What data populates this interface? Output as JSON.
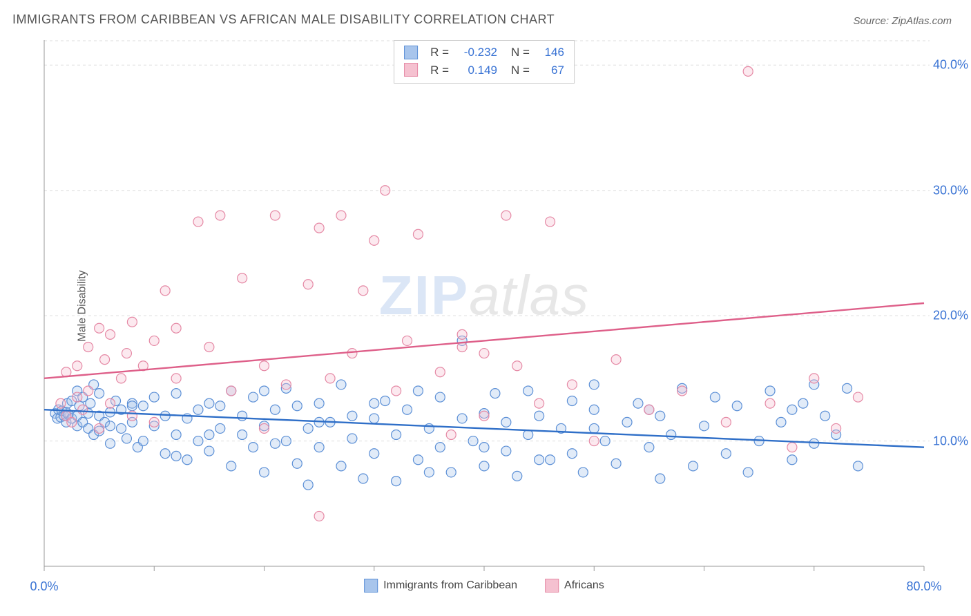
{
  "title": "IMMIGRANTS FROM CARIBBEAN VS AFRICAN MALE DISABILITY CORRELATION CHART",
  "source": "Source: ZipAtlas.com",
  "ylabel": "Male Disability",
  "chart": {
    "type": "scatter",
    "xlim": [
      0,
      80
    ],
    "ylim": [
      0,
      42
    ],
    "xticks": [
      0,
      80
    ],
    "xtick_labels": [
      "0.0%",
      "80.0%"
    ],
    "yticks": [
      10,
      20,
      30,
      40
    ],
    "ytick_labels": [
      "10.0%",
      "20.0%",
      "30.0%",
      "40.0%"
    ],
    "minor_x_count": 8,
    "grid_color": "#dddddd",
    "axis_color": "#999999",
    "background_color": "#ffffff",
    "marker_radius": 7,
    "marker_stroke_width": 1.2,
    "marker_fill_opacity": 0.35,
    "line_width": 2.4,
    "series": [
      {
        "name": "Immigrants from Caribbean",
        "color_stroke": "#5b8fd6",
        "color_fill": "#a8c5ec",
        "line_color": "#2f6fc8",
        "R": "-0.232",
        "N": "146",
        "trend": {
          "x1": 0,
          "y1": 12.5,
          "x2": 80,
          "y2": 9.5
        },
        "points": [
          [
            1,
            12.2
          ],
          [
            1.2,
            11.8
          ],
          [
            1.3,
            12.5
          ],
          [
            1.5,
            11.9
          ],
          [
            1.6,
            12.4
          ],
          [
            1.8,
            12.0
          ],
          [
            2,
            12.3
          ],
          [
            2,
            11.5
          ],
          [
            2.1,
            13.0
          ],
          [
            2.2,
            12.1
          ],
          [
            2.5,
            11.8
          ],
          [
            2.5,
            13.2
          ],
          [
            3,
            12.0
          ],
          [
            3,
            11.2
          ],
          [
            3,
            14.0
          ],
          [
            3.2,
            12.8
          ],
          [
            3.5,
            11.5
          ],
          [
            3.5,
            13.5
          ],
          [
            4,
            12.2
          ],
          [
            4,
            11.0
          ],
          [
            4.2,
            13.0
          ],
          [
            4.5,
            10.5
          ],
          [
            4.5,
            14.5
          ],
          [
            5,
            12.0
          ],
          [
            5,
            10.8
          ],
          [
            5,
            13.8
          ],
          [
            5.5,
            11.5
          ],
          [
            6,
            12.3
          ],
          [
            6,
            9.8
          ],
          [
            6.5,
            13.2
          ],
          [
            7,
            11.0
          ],
          [
            7,
            12.5
          ],
          [
            7.5,
            10.2
          ],
          [
            8,
            13.0
          ],
          [
            8,
            11.5
          ],
          [
            8.5,
            9.5
          ],
          [
            9,
            12.8
          ],
          [
            9,
            10.0
          ],
          [
            10,
            11.2
          ],
          [
            10,
            13.5
          ],
          [
            11,
            9.0
          ],
          [
            11,
            12.0
          ],
          [
            12,
            10.5
          ],
          [
            12,
            13.8
          ],
          [
            13,
            11.8
          ],
          [
            13,
            8.5
          ],
          [
            14,
            12.5
          ],
          [
            14,
            10.0
          ],
          [
            15,
            9.2
          ],
          [
            15,
            13.0
          ],
          [
            16,
            11.0
          ],
          [
            16,
            12.8
          ],
          [
            17,
            8.0
          ],
          [
            17,
            14.0
          ],
          [
            18,
            10.5
          ],
          [
            18,
            12.0
          ],
          [
            19,
            9.5
          ],
          [
            19,
            13.5
          ],
          [
            20,
            11.2
          ],
          [
            20,
            7.5
          ],
          [
            21,
            12.5
          ],
          [
            21,
            9.8
          ],
          [
            22,
            14.2
          ],
          [
            22,
            10.0
          ],
          [
            23,
            8.2
          ],
          [
            23,
            12.8
          ],
          [
            24,
            11.0
          ],
          [
            24,
            6.5
          ],
          [
            25,
            13.0
          ],
          [
            25,
            9.5
          ],
          [
            26,
            11.5
          ],
          [
            27,
            8.0
          ],
          [
            27,
            14.5
          ],
          [
            28,
            10.2
          ],
          [
            28,
            12.0
          ],
          [
            29,
            7.0
          ],
          [
            30,
            11.8
          ],
          [
            30,
            9.0
          ],
          [
            31,
            13.2
          ],
          [
            32,
            10.5
          ],
          [
            32,
            6.8
          ],
          [
            33,
            12.5
          ],
          [
            34,
            8.5
          ],
          [
            34,
            14.0
          ],
          [
            35,
            11.0
          ],
          [
            36,
            9.5
          ],
          [
            36,
            13.5
          ],
          [
            37,
            7.5
          ],
          [
            38,
            11.8
          ],
          [
            38,
            18.0
          ],
          [
            39,
            10.0
          ],
          [
            40,
            12.2
          ],
          [
            40,
            8.0
          ],
          [
            41,
            13.8
          ],
          [
            42,
            9.2
          ],
          [
            42,
            11.5
          ],
          [
            43,
            7.2
          ],
          [
            44,
            14.0
          ],
          [
            44,
            10.5
          ],
          [
            45,
            12.0
          ],
          [
            46,
            8.5
          ],
          [
            47,
            11.0
          ],
          [
            48,
            13.2
          ],
          [
            48,
            9.0
          ],
          [
            49,
            7.5
          ],
          [
            50,
            12.5
          ],
          [
            50,
            14.5
          ],
          [
            51,
            10.0
          ],
          [
            52,
            8.2
          ],
          [
            53,
            11.5
          ],
          [
            54,
            13.0
          ],
          [
            55,
            9.5
          ],
          [
            56,
            7.0
          ],
          [
            56,
            12.0
          ],
          [
            57,
            10.5
          ],
          [
            58,
            14.2
          ],
          [
            59,
            8.0
          ],
          [
            60,
            11.2
          ],
          [
            61,
            13.5
          ],
          [
            62,
            9.0
          ],
          [
            63,
            12.8
          ],
          [
            64,
            7.5
          ],
          [
            65,
            10.0
          ],
          [
            66,
            14.0
          ],
          [
            67,
            11.5
          ],
          [
            68,
            8.5
          ],
          [
            69,
            13.0
          ],
          [
            70,
            9.8
          ],
          [
            70,
            14.5
          ],
          [
            71,
            12.0
          ],
          [
            72,
            10.5
          ],
          [
            73,
            14.2
          ],
          [
            74,
            8.0
          ],
          [
            68,
            12.5
          ],
          [
            55,
            12.5
          ],
          [
            50,
            11.0
          ],
          [
            45,
            8.5
          ],
          [
            40,
            9.5
          ],
          [
            35,
            7.5
          ],
          [
            30,
            13.0
          ],
          [
            25,
            11.5
          ],
          [
            20,
            14.0
          ],
          [
            15,
            10.5
          ],
          [
            12,
            8.8
          ],
          [
            8,
            12.8
          ],
          [
            6,
            11.2
          ]
        ]
      },
      {
        "name": "Africans",
        "color_stroke": "#e589a5",
        "color_fill": "#f5c1d0",
        "line_color": "#de5f89",
        "R": "0.149",
        "N": "67",
        "trend": {
          "x1": 0,
          "y1": 15.0,
          "x2": 80,
          "y2": 21.0
        },
        "points": [
          [
            1.5,
            13.0
          ],
          [
            2,
            12.0
          ],
          [
            2,
            15.5
          ],
          [
            2.5,
            11.5
          ],
          [
            3,
            16.0
          ],
          [
            3,
            13.5
          ],
          [
            3.5,
            12.5
          ],
          [
            4,
            17.5
          ],
          [
            4,
            14.0
          ],
          [
            5,
            19.0
          ],
          [
            5,
            11.0
          ],
          [
            5.5,
            16.5
          ],
          [
            6,
            18.5
          ],
          [
            6,
            13.0
          ],
          [
            7,
            15.0
          ],
          [
            7.5,
            17.0
          ],
          [
            8,
            19.5
          ],
          [
            8,
            12.0
          ],
          [
            9,
            16.0
          ],
          [
            10,
            18.0
          ],
          [
            10,
            11.5
          ],
          [
            11,
            22.0
          ],
          [
            12,
            15.0
          ],
          [
            12,
            19.0
          ],
          [
            14,
            27.5
          ],
          [
            15,
            17.5
          ],
          [
            16,
            28.0
          ],
          [
            17,
            14.0
          ],
          [
            18,
            23.0
          ],
          [
            20,
            16.0
          ],
          [
            20,
            11.0
          ],
          [
            21,
            28.0
          ],
          [
            22,
            14.5
          ],
          [
            24,
            22.5
          ],
          [
            25,
            27.0
          ],
          [
            26,
            15.0
          ],
          [
            27,
            28.0
          ],
          [
            28,
            17.0
          ],
          [
            29,
            22.0
          ],
          [
            30,
            26.0
          ],
          [
            31,
            30.0
          ],
          [
            32,
            14.0
          ],
          [
            33,
            18.0
          ],
          [
            34,
            26.5
          ],
          [
            36,
            15.5
          ],
          [
            37,
            10.5
          ],
          [
            38,
            17.5
          ],
          [
            40,
            12.0
          ],
          [
            42,
            28.0
          ],
          [
            43,
            16.0
          ],
          [
            25,
            4.0
          ],
          [
            45,
            13.0
          ],
          [
            46,
            27.5
          ],
          [
            48,
            14.5
          ],
          [
            50,
            10.0
          ],
          [
            52,
            16.5
          ],
          [
            55,
            12.5
          ],
          [
            58,
            14.0
          ],
          [
            62,
            11.5
          ],
          [
            64,
            39.5
          ],
          [
            66,
            13.0
          ],
          [
            68,
            9.5
          ],
          [
            70,
            15.0
          ],
          [
            72,
            11.0
          ],
          [
            74,
            13.5
          ],
          [
            38,
            18.5
          ],
          [
            40,
            17.0
          ]
        ]
      }
    ]
  },
  "legend": {
    "series1_label": "Immigrants from Caribbean",
    "series2_label": "Africans"
  },
  "watermark": {
    "part1": "ZIP",
    "part2": "atlas"
  },
  "colors": {
    "tick_label": "#3973d4",
    "title": "#555555"
  }
}
